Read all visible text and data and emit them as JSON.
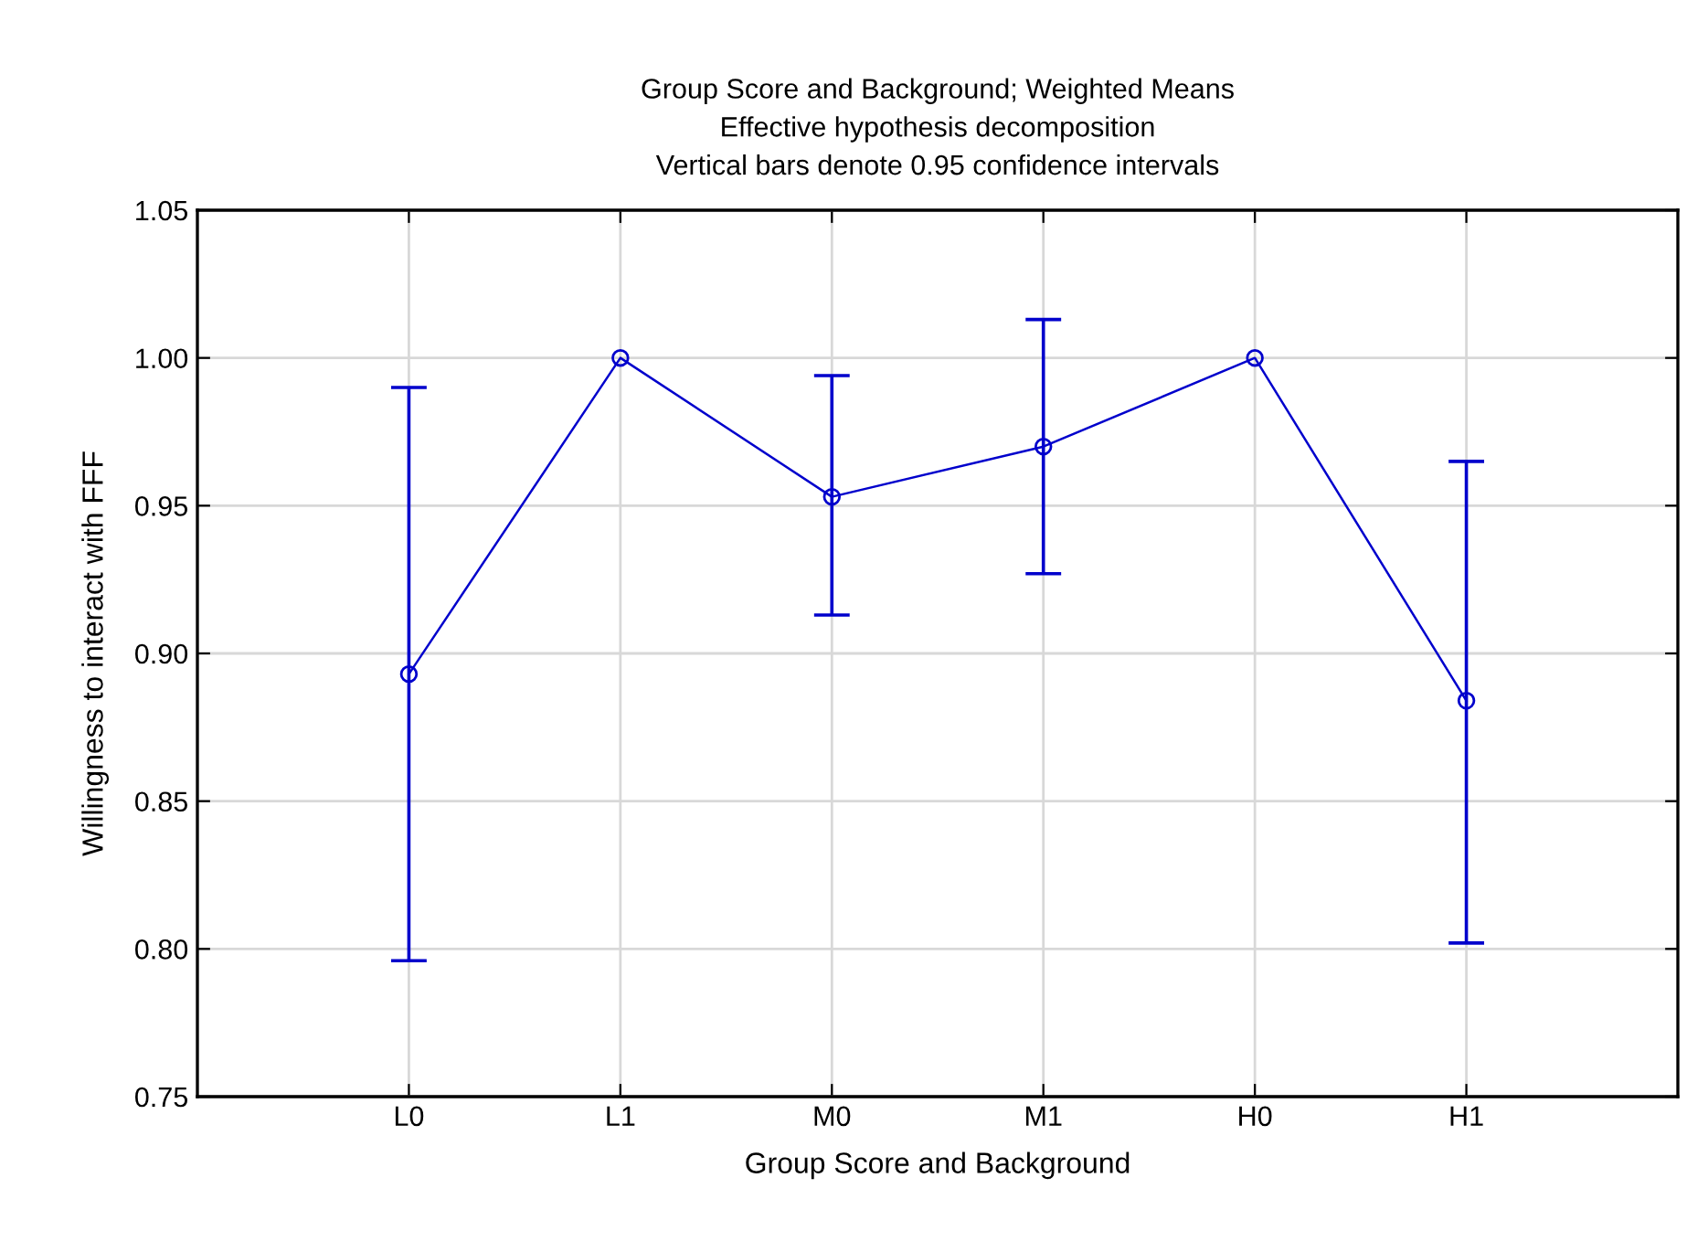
{
  "chart_data": {
    "type": "line",
    "title": "Group Score and Background; Weighted Means\nEffective hypothesis decomposition\nVertical bars denote 0.95 confidence intervals",
    "xlabel": "Group Score and Background",
    "ylabel": "Willingness to interact with FFF",
    "categories": [
      "L0",
      "L1",
      "M0",
      "M1",
      "H0",
      "H1"
    ],
    "values": [
      0.893,
      1.0,
      0.953,
      0.97,
      1.0,
      0.884
    ],
    "errors": [
      [
        0.796,
        0.99
      ],
      null,
      [
        0.913,
        0.994
      ],
      [
        0.927,
        1.013
      ],
      null,
      [
        0.802,
        0.965
      ]
    ],
    "color": "#0000cc",
    "ylim": [
      0.75,
      1.05
    ],
    "yticks": [
      0.75,
      {
        "value": 0.8,
        "label": "0.80"
      },
      0.85,
      {
        "value": 0.9,
        "label": "0.90"
      },
      0.95,
      {
        "value": 1.0,
        "label": "1.00"
      },
      1.05
    ],
    "grid": true,
    "marker": "circle",
    "line_style": "solid"
  }
}
